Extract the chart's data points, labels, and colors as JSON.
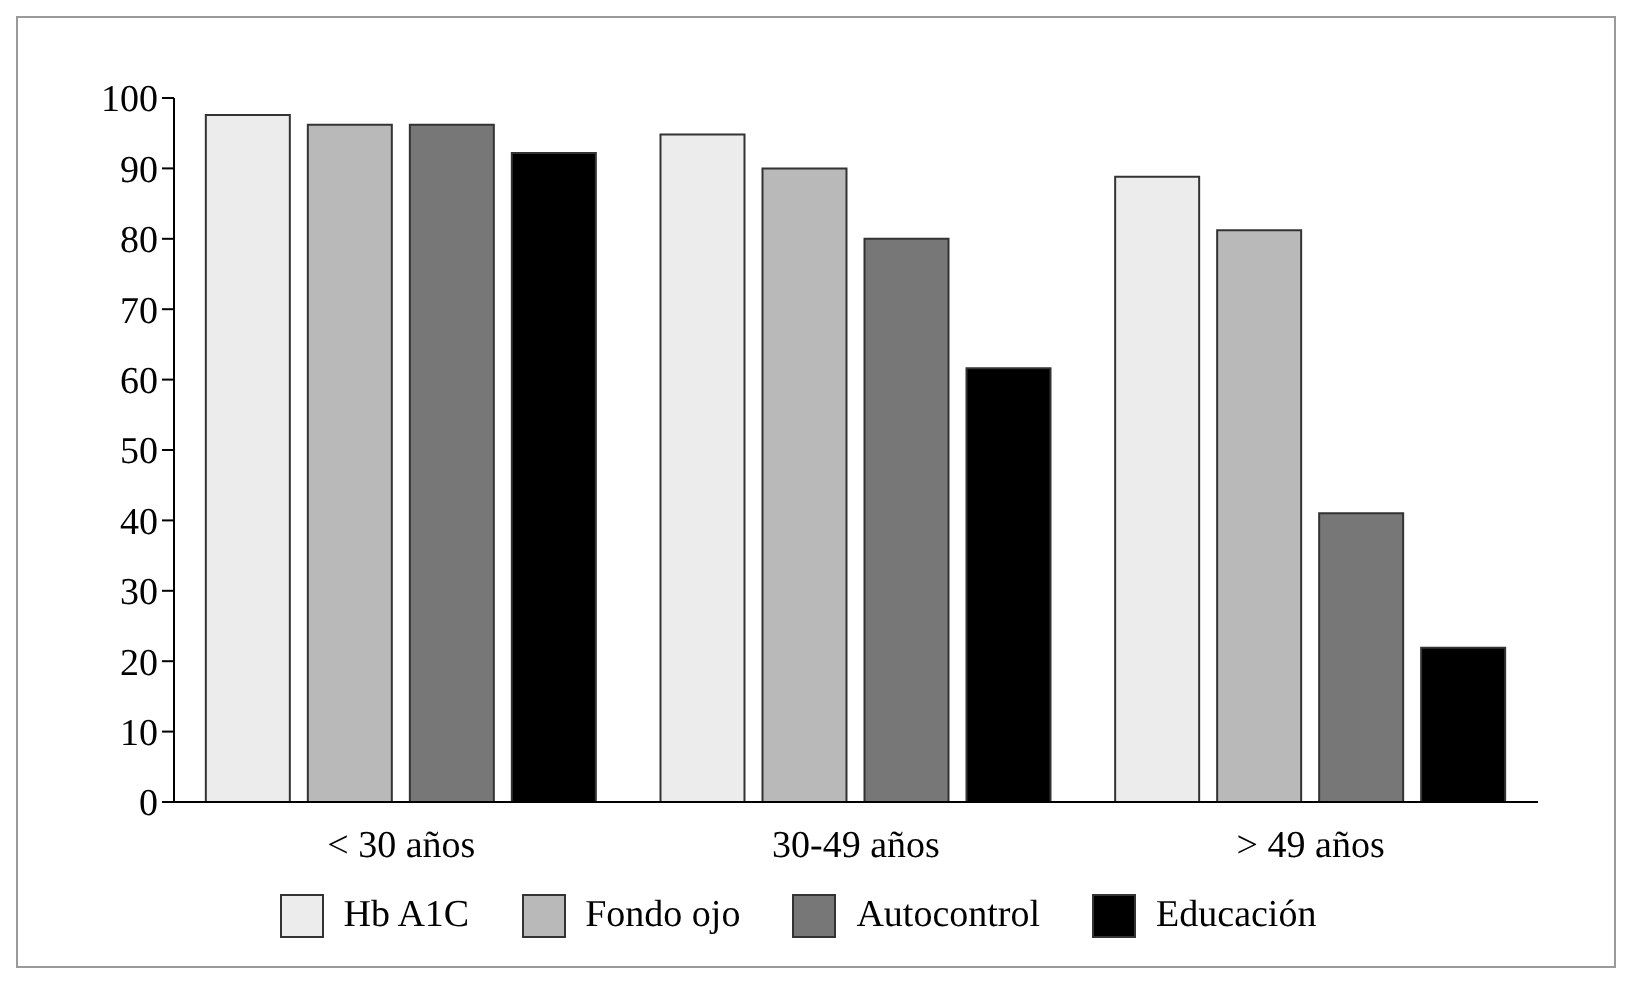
{
  "chart_data": {
    "type": "bar",
    "categories": [
      "< 30 años",
      "30-49 años",
      "> 49 años"
    ],
    "series": [
      {
        "name": "Hb A1C",
        "color": "#ececec",
        "values": [
          97.6,
          94.8,
          88.8
        ]
      },
      {
        "name": "Fondo ojo",
        "color": "#b9b9b9",
        "values": [
          96.2,
          90,
          81.2
        ]
      },
      {
        "name": "Autocontrol",
        "color": "#777777",
        "values": [
          96.2,
          80,
          41
        ]
      },
      {
        "name": "Educación",
        "color": "#000000",
        "values": [
          92.2,
          61.6,
          21.9
        ]
      }
    ],
    "ylim": [
      0,
      100
    ],
    "yticks": [
      0,
      10,
      20,
      30,
      40,
      50,
      60,
      70,
      80,
      90,
      100
    ],
    "grid": false,
    "legend": "bottom"
  }
}
